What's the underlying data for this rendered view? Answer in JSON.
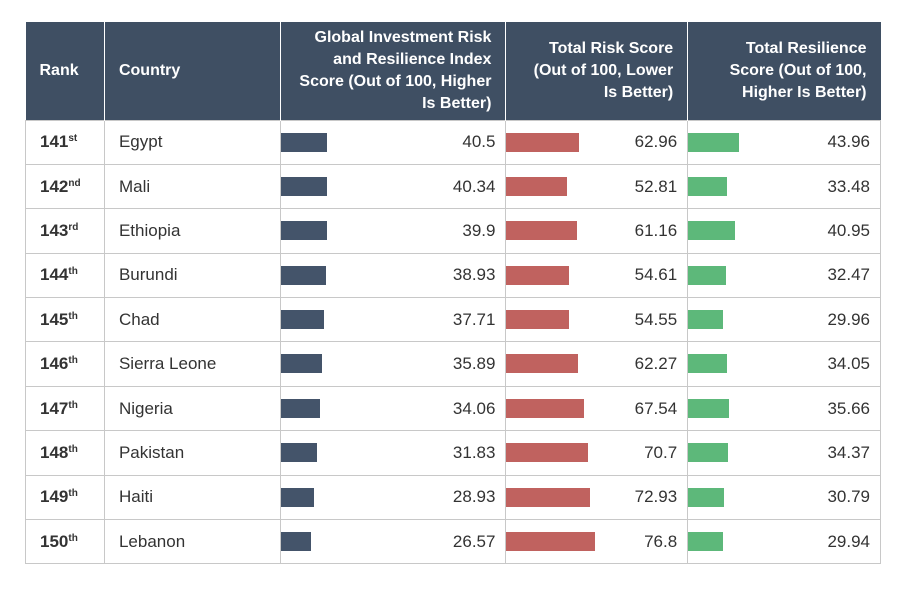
{
  "table": {
    "headers": [
      "Rank",
      "Country",
      "Global Investment Risk and Resilience Index Score (Out of 100, Higher Is Better)",
      "Total Risk Score (Out of 100, Lower Is Better)",
      "Total Resilience Score (Out of 100, Higher Is Better)"
    ],
    "rows": [
      [
        {
          "number": "141",
          "suffix": "st"
        },
        "Egypt",
        40.5,
        62.96,
        43.96
      ],
      [
        {
          "number": "142",
          "suffix": "nd"
        },
        "Mali",
        40.34,
        52.81,
        33.48
      ],
      [
        {
          "number": "143",
          "suffix": "rd"
        },
        "Ethiopia",
        39.9,
        61.16,
        40.95
      ],
      [
        {
          "number": "144",
          "suffix": "th"
        },
        "Burundi",
        38.93,
        54.61,
        32.47
      ],
      [
        {
          "number": "145",
          "suffix": "th"
        },
        "Chad",
        37.71,
        54.55,
        29.96
      ],
      [
        {
          "number": "146",
          "suffix": "th"
        },
        "Sierra Leone",
        35.89,
        62.27,
        34.05
      ],
      [
        {
          "number": "147",
          "suffix": "th"
        },
        "Nigeria",
        34.06,
        67.54,
        35.66
      ],
      [
        {
          "number": "148",
          "suffix": "th"
        },
        "Pakistan",
        31.83,
        70.7,
        34.37
      ],
      [
        {
          "number": "149",
          "suffix": "th"
        },
        "Haiti",
        28.93,
        72.93,
        30.79
      ],
      [
        {
          "number": "150",
          "suffix": "th"
        },
        "Lebanon",
        26.57,
        76.8,
        29.94
      ]
    ],
    "bar_colors": [
      "#44546a",
      "#c0625f",
      "#5db87a"
    ]
  }
}
